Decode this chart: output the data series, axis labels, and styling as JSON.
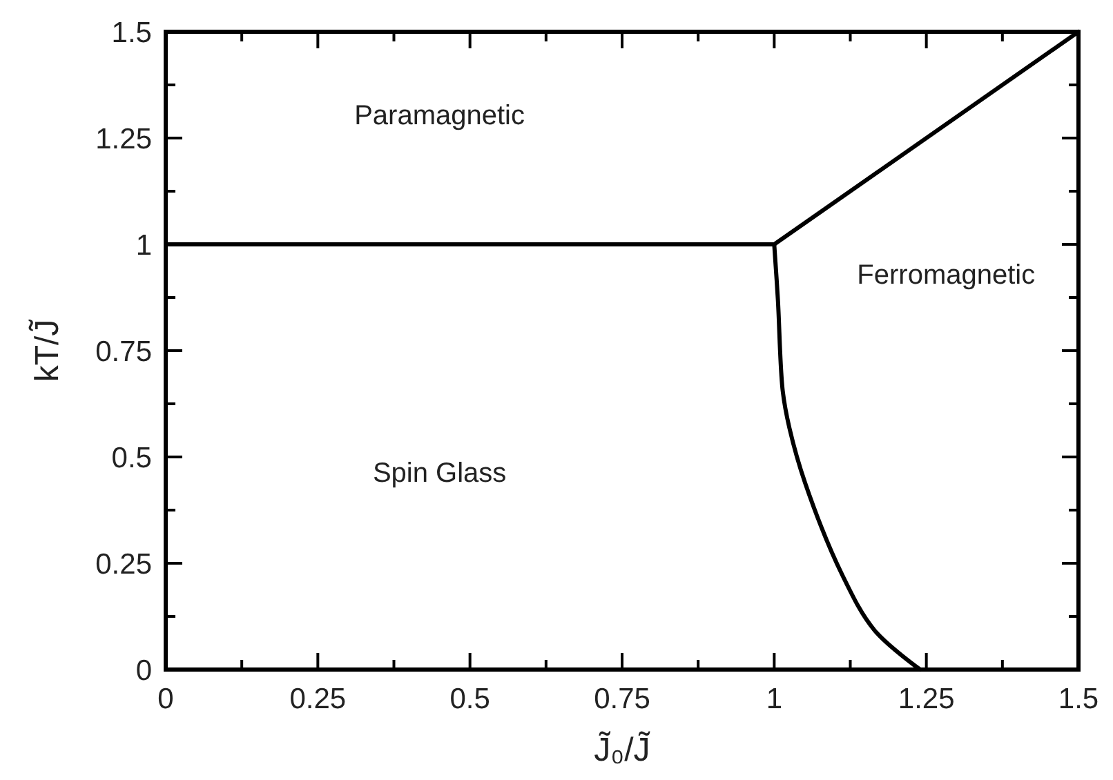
{
  "chart_data": {
    "type": "line",
    "xlabel": "J̃₀/J̃",
    "ylabel": "kT/J̃",
    "xlim": [
      0,
      1.5
    ],
    "ylim": [
      0,
      1.5
    ],
    "xticks": [
      0,
      {
        "value": 0.125,
        "label": null
      },
      0.25,
      {
        "value": 0.375,
        "label": null
      },
      0.5,
      {
        "value": 0.625,
        "label": null
      },
      0.75,
      {
        "value": 0.875,
        "label": null
      },
      1,
      {
        "value": 1.125,
        "label": null
      },
      1.25,
      {
        "value": 1.375,
        "label": null
      },
      1.5
    ],
    "yticks": [
      0,
      {
        "value": 0.125,
        "label": null
      },
      0.25,
      {
        "value": 0.375,
        "label": null
      },
      0.5,
      {
        "value": 0.625,
        "label": null
      },
      0.75,
      {
        "value": 0.875,
        "label": null
      },
      1,
      {
        "value": 1.125,
        "label": null
      },
      1.25,
      {
        "value": 1.375,
        "label": null
      },
      1.5
    ],
    "grid": false,
    "marker": "none",
    "line_style": "solid",
    "series": [
      {
        "color": "#000000",
        "x": [
          0,
          1
        ],
        "values": [
          1,
          1
        ]
      },
      {
        "color": "#000000",
        "x": [
          1,
          1.5
        ],
        "values": [
          1,
          1.5
        ]
      },
      {
        "color": "#000000",
        "x": [
          1,
          1.006,
          1.014,
          1.025,
          1.051,
          1.112,
          1.165,
          1.24
        ],
        "values": [
          1,
          0.871,
          0.655,
          0.568,
          0.438,
          0.222,
          0.092,
          0
        ]
      }
    ],
    "annotations": [
      "Paramagnetic",
      "Spin Glass",
      "Ferromagnetic"
    ]
  }
}
